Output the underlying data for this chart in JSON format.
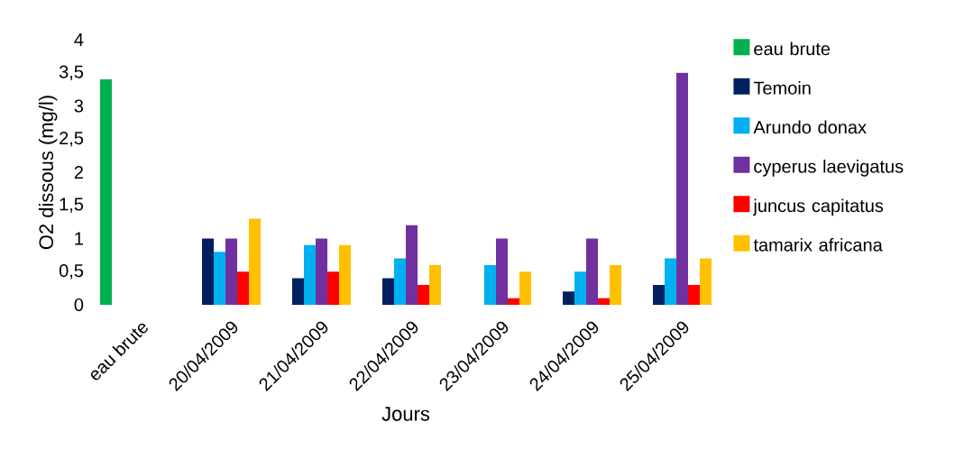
{
  "chart_data": {
    "type": "bar",
    "xlabel": "Jours",
    "ylabel": "O2 dissous (mg/l)",
    "categories": [
      "eau brute",
      "20/04/2009",
      "21/04/2009",
      "22/04/2009",
      "23/04/2009",
      "24/04/2009",
      "25/04/2009"
    ],
    "series": [
      {
        "name": "eau brute",
        "color": "#00b050",
        "values": [
          3.4,
          null,
          null,
          null,
          null,
          null,
          null
        ]
      },
      {
        "name": "Temoin",
        "color": "#002060",
        "values": [
          null,
          1,
          0.4,
          0.4,
          null,
          0.2,
          0.3
        ]
      },
      {
        "name": "Arundo donax",
        "color": "#00b0f0",
        "values": [
          null,
          0.8,
          0.9,
          0.7,
          0.6,
          0.5,
          0.7
        ]
      },
      {
        "name": "cyperus laevigatus",
        "color": "#7030a0",
        "values": [
          null,
          1,
          1,
          1.2,
          1,
          1,
          3.5
        ]
      },
      {
        "name": "juncus capitatus",
        "color": "#ff0000",
        "values": [
          null,
          0.5,
          0.5,
          0.3,
          0.1,
          0.1,
          0.3
        ]
      },
      {
        "name": "tamarix africana",
        "color": "#ffc000",
        "values": [
          null,
          1.3,
          0.9,
          0.6,
          0.5,
          0.6,
          0.7
        ]
      }
    ],
    "ylim": [
      0,
      4
    ],
    "yticks": [
      0,
      {
        "value": 0.5,
        "label": "0,5"
      },
      1,
      {
        "value": 1.5,
        "label": "1,5"
      },
      2,
      {
        "value": 2.5,
        "label": "2,5"
      },
      3,
      {
        "value": 3.5,
        "label": "3,5"
      },
      4
    ],
    "legend": "right"
  }
}
